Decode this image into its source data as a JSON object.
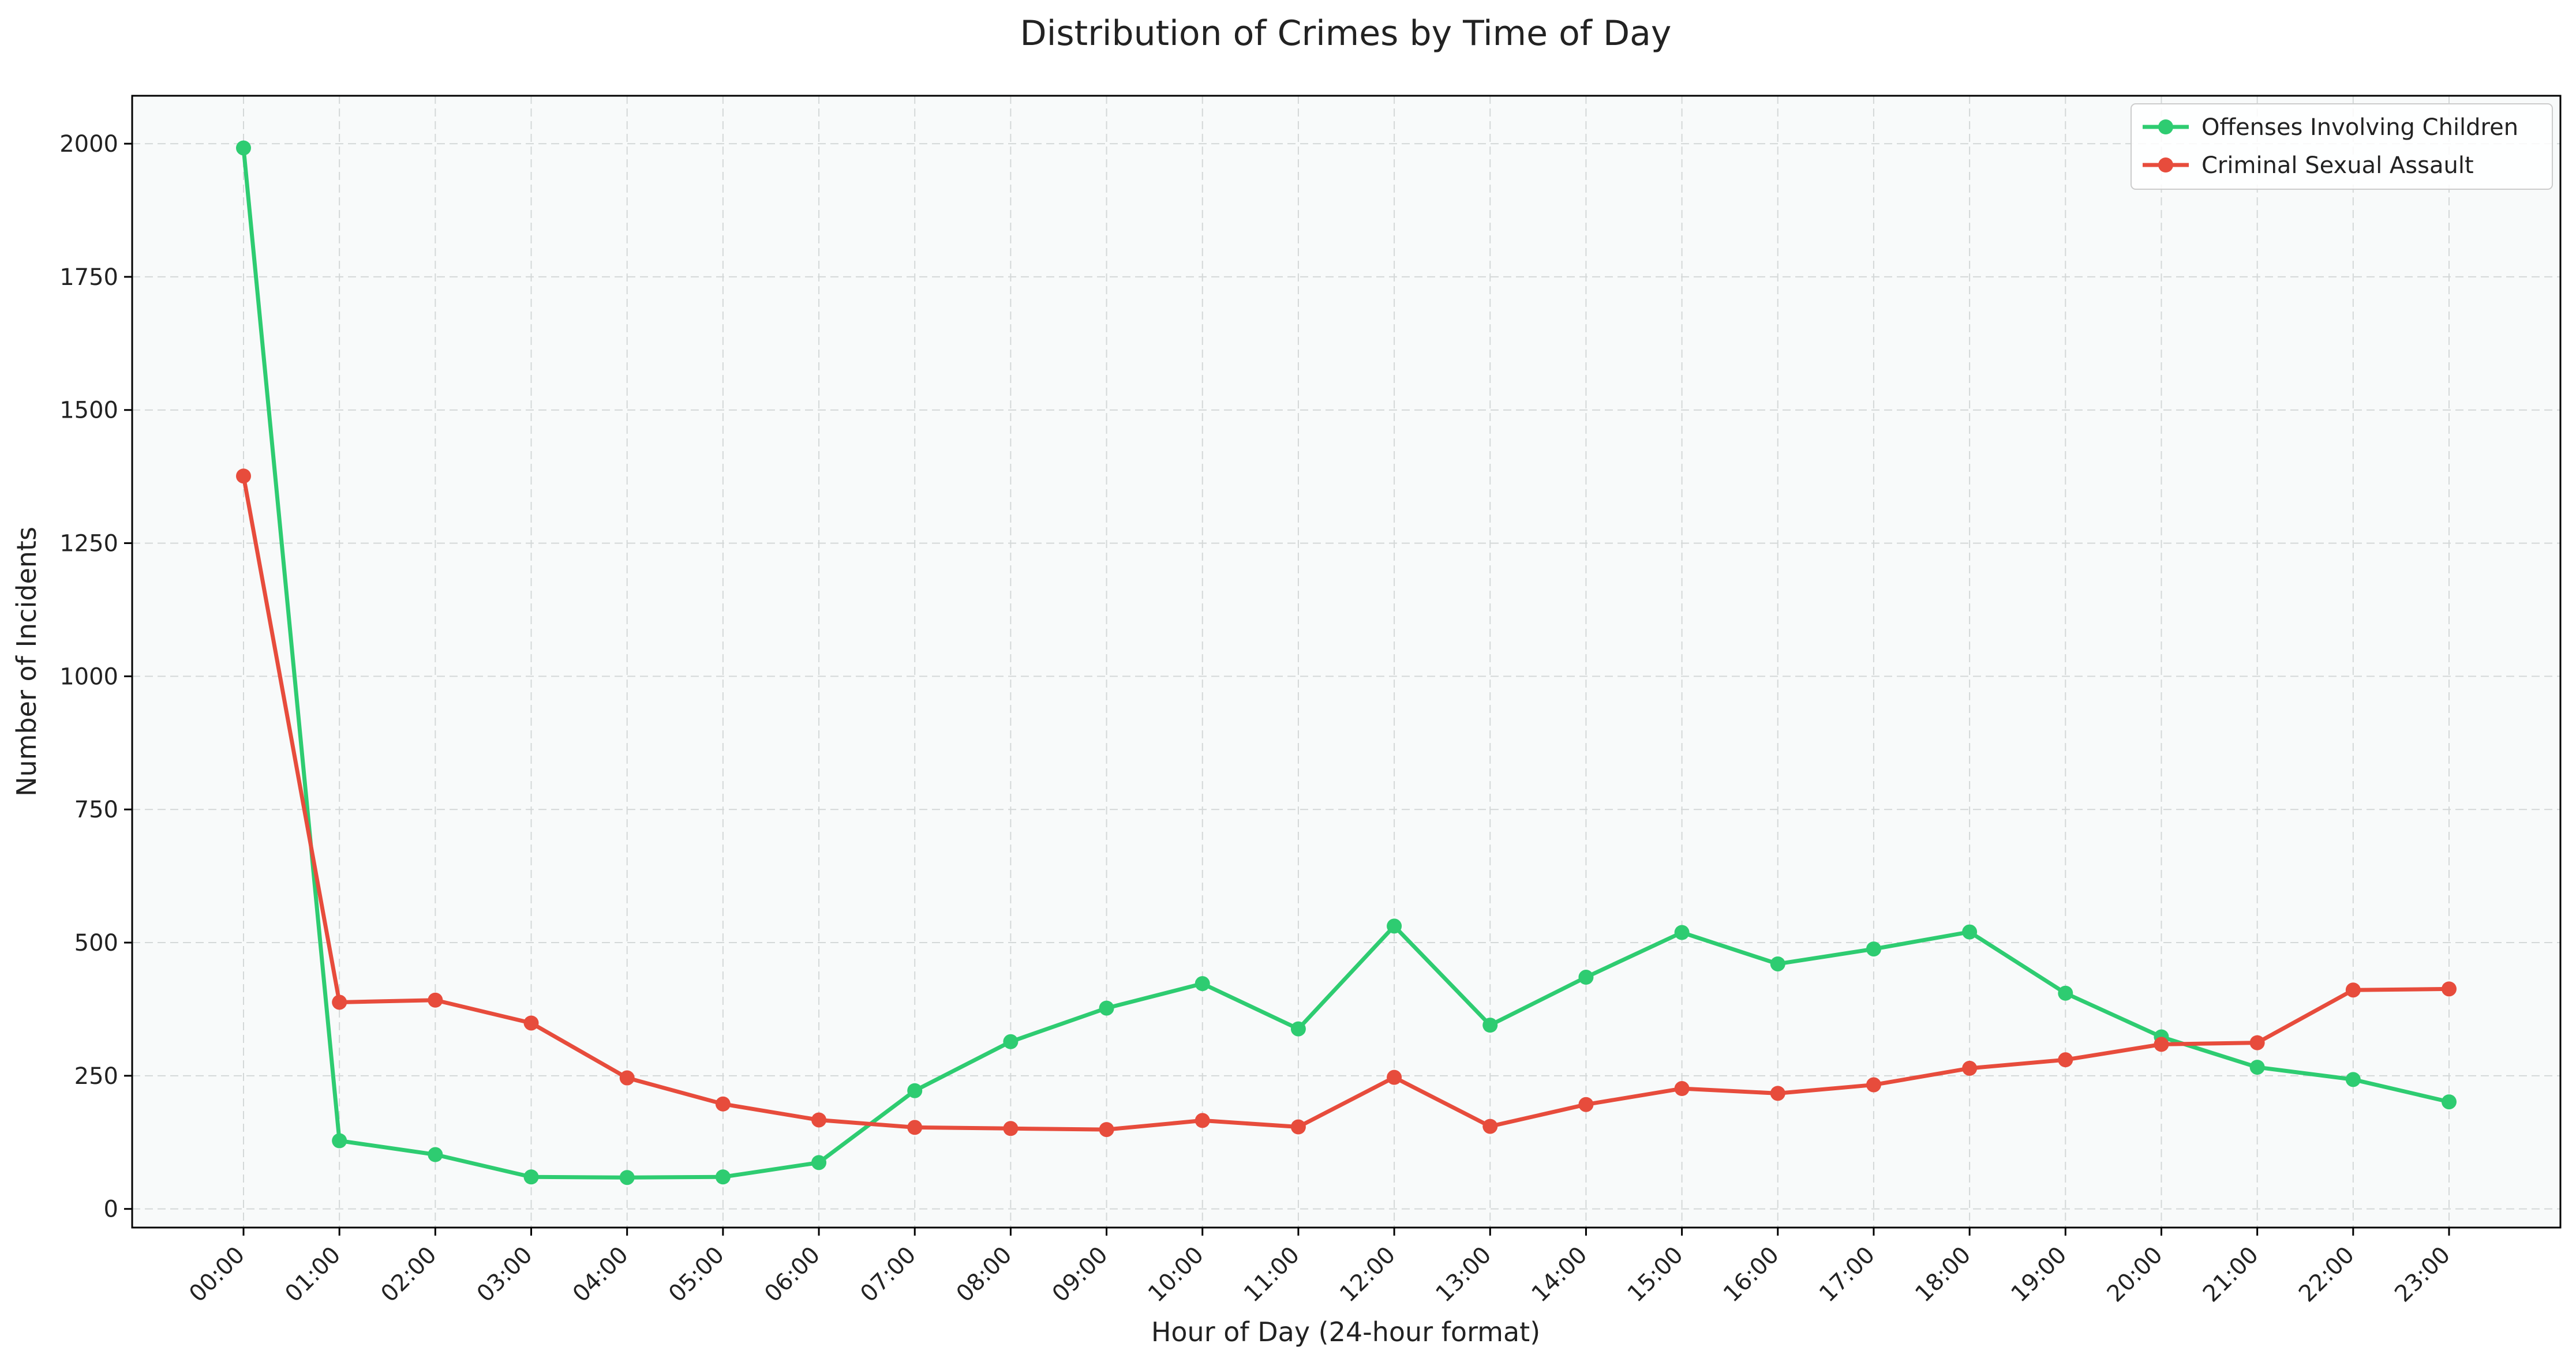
{
  "chart_data": {
    "type": "line",
    "title": "Distribution of Crimes by Time of Day",
    "xlabel": "Hour of Day (24-hour format)",
    "ylabel": "Number of Incidents",
    "categories": [
      "00:00",
      "01:00",
      "02:00",
      "03:00",
      "04:00",
      "05:00",
      "06:00",
      "07:00",
      "08:00",
      "09:00",
      "10:00",
      "11:00",
      "12:00",
      "13:00",
      "14:00",
      "15:00",
      "16:00",
      "17:00",
      "18:00",
      "19:00",
      "20:00",
      "21:00",
      "22:00",
      "23:00"
    ],
    "ylim": [
      -35,
      2090
    ],
    "yticks": [
      0,
      250,
      500,
      750,
      1000,
      1250,
      1500,
      1750,
      2000
    ],
    "grid": true,
    "legend_position": "top-right",
    "series": [
      {
        "name": "Offenses Involving Children",
        "color": "#2ecc71",
        "values": [
          1992,
          128,
          102,
          60,
          59,
          60,
          87,
          222,
          314,
          377,
          423,
          338,
          531,
          345,
          435,
          519,
          460,
          488,
          520,
          405,
          323,
          266,
          243,
          201
        ]
      },
      {
        "name": "Criminal Sexual Assault",
        "color": "#e74c3c",
        "values": [
          1376,
          388,
          392,
          349,
          246,
          197,
          167,
          153,
          151,
          149,
          166,
          154,
          247,
          155,
          196,
          226,
          217,
          233,
          264,
          280,
          309,
          312,
          411,
          413
        ]
      }
    ]
  }
}
